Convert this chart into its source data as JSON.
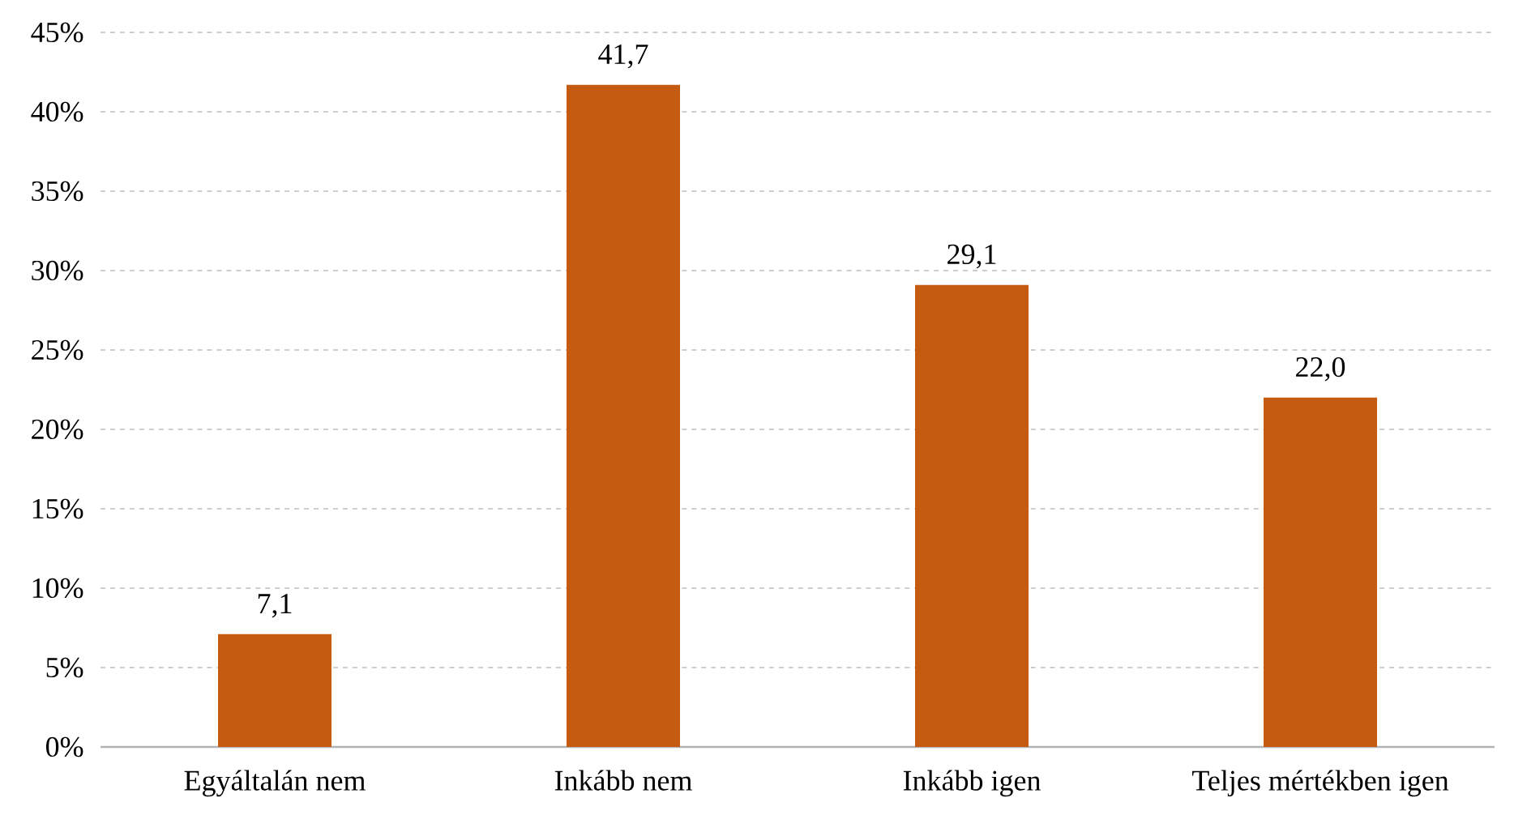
{
  "chart_data": {
    "type": "bar",
    "categories": [
      "Egyáltalán nem",
      "Inkább nem",
      "Inkább igen",
      "Teljes mértékben igen"
    ],
    "values": [
      7.1,
      41.7,
      29.1,
      22.0
    ],
    "value_labels": [
      "7,1",
      "41,7",
      "29,1",
      "22,0"
    ],
    "color": "#c55a11",
    "ylim": [
      0,
      45
    ],
    "yticks": [
      {
        "value": 0,
        "label": "0%"
      },
      {
        "value": 5,
        "label": "5%"
      },
      {
        "value": 10,
        "label": "10%"
      },
      {
        "value": 15,
        "label": "15%"
      },
      {
        "value": 20,
        "label": "20%"
      },
      {
        "value": 25,
        "label": "25%"
      },
      {
        "value": 30,
        "label": "30%"
      },
      {
        "value": 35,
        "label": "35%"
      },
      {
        "value": 40,
        "label": "40%"
      },
      {
        "value": 45,
        "label": "45%"
      }
    ],
    "grid": "y"
  }
}
